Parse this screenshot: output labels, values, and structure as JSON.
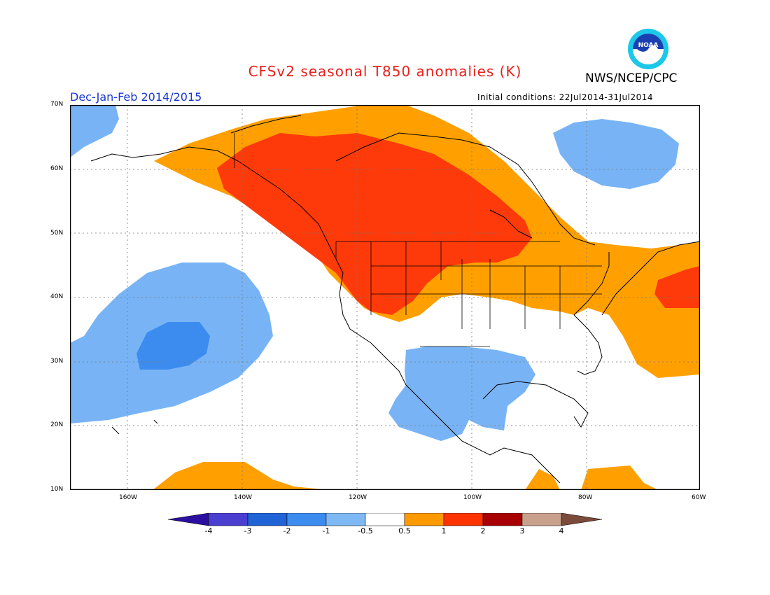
{
  "title": "CFSv2 seasonal T850 anomalies (K)",
  "agency": "NWS/NCEP/CPC",
  "season": "Dec-Jan-Feb 2014/2015",
  "initial_conditions": "Initial conditions: 22Jul2014-31Jul2014",
  "logo": {
    "text": "NOAA",
    "icon": "noaa-logo"
  },
  "lat_labels": [
    "70N",
    "60N",
    "50N",
    "40N",
    "30N",
    "20N",
    "10N"
  ],
  "lon_labels": [
    "160W",
    "140W",
    "120W",
    "100W",
    "80W",
    "60W"
  ],
  "colorbar": {
    "labels": [
      "-4",
      "-3",
      "-2",
      "-1",
      "-0.5",
      "0.5",
      "1",
      "2",
      "3",
      "4"
    ],
    "colors": [
      "#2a0fa0",
      "#4a3fd0",
      "#1f63d6",
      "#3c8cf0",
      "#7fb9f5",
      "#ffffff",
      "#ff9900",
      "#ff3300",
      "#a80000",
      "#c8a08c",
      "#7a4a3a"
    ]
  },
  "colors": {
    "warm1": "#ffa000",
    "warm2": "#ff3a0a",
    "cool1": "#78b4f5",
    "cool2": "#3c8cf0"
  }
}
